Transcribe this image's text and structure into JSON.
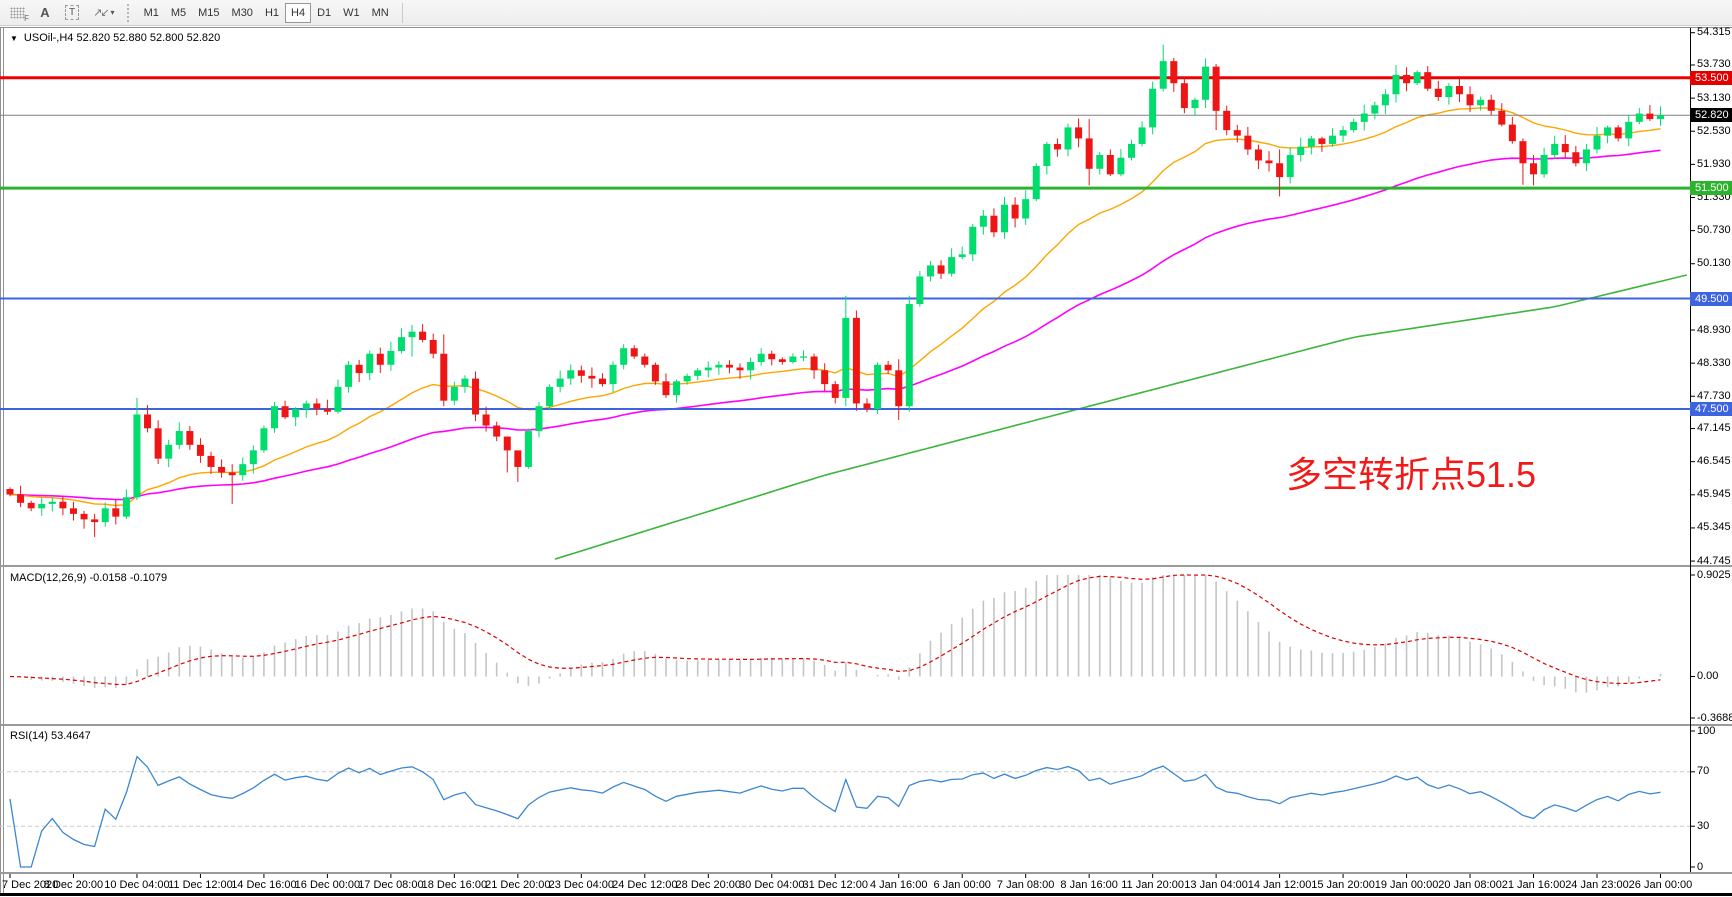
{
  "toolbar": {
    "icons": [
      {
        "name": "chart-grid-icon",
        "glyph": "F"
      },
      {
        "name": "insert-text-icon",
        "glyph": "A"
      },
      {
        "name": "text-label-icon",
        "glyph": "T"
      },
      {
        "name": "cursor-arrows-icon",
        "glyph": "↗↙"
      },
      {
        "name": "dropdown-caret-icon",
        "glyph": "▾"
      }
    ],
    "timeframes": [
      "M1",
      "M5",
      "M15",
      "M30",
      "H1",
      "H4",
      "D1",
      "W1",
      "MN"
    ],
    "active_timeframe": "H4"
  },
  "symbol_info": {
    "dropdown_icon": "▼",
    "text": "USOil-,H4  52.820 52.880 52.800 52.820"
  },
  "annotation": {
    "text": "多空转折点51.5",
    "color": "#f21919"
  },
  "price_scale": {
    "ticks": [
      "54.315",
      "53.730",
      "53.130",
      "52.530",
      "51.930",
      "51.330",
      "50.730",
      "50.130",
      "48.930",
      "48.330",
      "47.730",
      "47.145",
      "46.545",
      "45.945",
      "45.345",
      "44.745"
    ],
    "badges": [
      {
        "label": "53.500",
        "price": 53.5,
        "bg": "#e00000",
        "fg": "#ffffff"
      },
      {
        "label": "52.820",
        "price": 52.82,
        "bg": "#000000",
        "fg": "#ffffff"
      },
      {
        "label": "51.500",
        "price": 51.5,
        "bg": "#2db22d",
        "fg": "#ffffff"
      },
      {
        "label": "49.500",
        "price": 49.5,
        "bg": "#3e63de",
        "fg": "#ffffff"
      },
      {
        "label": "47.500",
        "price": 47.5,
        "bg": "#3e63de",
        "fg": "#ffffff"
      }
    ]
  },
  "macd_panel": {
    "label": "MACD(12,26,9) -0.0158 -0.1079",
    "scale": {
      "max": "0.9025",
      "zero": "0.00",
      "min": "-0.3688"
    },
    "scale_values": {
      "max": 0.9025,
      "zero": 0.0,
      "min": -0.3688
    }
  },
  "rsi_panel": {
    "label": "RSI(14) 53.4647",
    "levels": [
      {
        "text": "100",
        "value": 100,
        "dashed": false
      },
      {
        "text": "70",
        "value": 70,
        "dashed": true
      },
      {
        "text": "30",
        "value": 30,
        "dashed": true
      },
      {
        "text": "0",
        "value": 0,
        "dashed": false
      }
    ]
  },
  "time_axis": {
    "labels": [
      "7 Dec 2020",
      "8 Dec 20:00",
      "10 Dec 04:00",
      "11 Dec 12:00",
      "14 Dec 16:00",
      "16 Dec 00:00",
      "17 Dec 08:00",
      "18 Dec 16:00",
      "21 Dec 20:00",
      "23 Dec 04:00",
      "24 Dec 12:00",
      "28 Dec 20:00",
      "30 Dec 04:00",
      "31 Dec 12:00",
      "4 Jan 16:00",
      "6 Jan 00:00",
      "7 Jan 08:00",
      "8 Jan 16:00",
      "11 Jan 20:00",
      "13 Jan 04:00",
      "14 Jan 12:00",
      "15 Jan 20:00",
      "19 Jan 00:00",
      "20 Jan 08:00",
      "21 Jan 16:00",
      "24 Jan 23:00",
      "26 Jan 00:00"
    ],
    "candles_per_label": 6
  },
  "chart_data": {
    "type": "candlestick",
    "symbol": "USOil-",
    "timeframe": "H4",
    "title": "USOil-,H4",
    "current_ohlc": {
      "open": 52.82,
      "high": 52.88,
      "low": 52.8,
      "close": 52.82
    },
    "ylim": [
      44.71,
      54.4
    ],
    "first_open": 46.05,
    "closes": [
      45.95,
      45.8,
      45.7,
      45.78,
      45.82,
      45.7,
      45.6,
      45.5,
      45.45,
      45.7,
      45.55,
      45.9,
      47.4,
      47.15,
      46.6,
      46.85,
      47.1,
      46.85,
      46.65,
      46.45,
      46.35,
      46.3,
      46.5,
      46.75,
      47.15,
      47.55,
      47.35,
      47.5,
      47.6,
      47.5,
      47.45,
      47.9,
      48.3,
      48.15,
      48.5,
      48.3,
      48.55,
      48.8,
      48.9,
      48.75,
      48.5,
      47.65,
      47.9,
      48.05,
      47.4,
      47.2,
      47.0,
      46.75,
      46.45,
      47.1,
      47.55,
      47.9,
      48.05,
      48.2,
      48.1,
      48.05,
      47.95,
      48.3,
      48.6,
      48.45,
      48.3,
      48.0,
      47.75,
      48.0,
      48.1,
      48.2,
      48.25,
      48.3,
      48.25,
      48.2,
      48.35,
      48.5,
      48.4,
      48.35,
      48.45,
      48.45,
      48.2,
      47.95,
      47.7,
      49.15,
      47.6,
      47.5,
      48.3,
      48.2,
      47.55,
      49.4,
      49.9,
      50.1,
      49.95,
      50.25,
      50.3,
      50.8,
      51.0,
      50.7,
      51.2,
      50.95,
      51.3,
      51.9,
      52.3,
      52.2,
      52.6,
      52.4,
      51.85,
      52.1,
      51.75,
      52.05,
      52.3,
      52.6,
      53.3,
      53.8,
      53.4,
      52.95,
      53.1,
      53.7,
      52.9,
      52.55,
      52.45,
      52.2,
      52.0,
      51.95,
      51.7,
      52.1,
      52.25,
      52.4,
      52.3,
      52.45,
      52.55,
      52.7,
      52.85,
      53.0,
      53.2,
      53.55,
      53.4,
      53.6,
      53.3,
      53.15,
      53.35,
      53.2,
      53.0,
      53.1,
      52.9,
      52.65,
      52.35,
      51.95,
      51.75,
      52.1,
      52.3,
      52.15,
      51.95,
      52.2,
      52.45,
      52.6,
      52.4,
      52.7,
      52.85,
      52.75,
      52.82
    ],
    "wick_overrides": {
      "8": [
        45.6,
        45.18
      ],
      "12": [
        47.7,
        45.85
      ],
      "21": [
        46.5,
        45.78
      ],
      "38": [
        49.02,
        48.45
      ],
      "41": [
        48.85,
        47.55
      ],
      "47": [
        46.85,
        46.35
      ],
      "48": [
        46.55,
        46.18
      ],
      "79": [
        49.55,
        47.55
      ],
      "84": [
        48.4,
        47.3
      ],
      "85": [
        49.55,
        47.45
      ],
      "102": [
        52.75,
        51.55
      ],
      "109": [
        54.1,
        53.25
      ],
      "113": [
        53.85,
        52.95
      ],
      "114": [
        53.75,
        52.55
      ],
      "120": [
        52.2,
        51.35
      ],
      "131": [
        53.73,
        53.05
      ],
      "143": [
        52.4,
        51.56
      ],
      "144": [
        52.1,
        51.55
      ]
    },
    "hlines": [
      {
        "price": 53.5,
        "color": "#f00000",
        "width": 3
      },
      {
        "price": 51.5,
        "color": "#2db22d",
        "width": 3
      },
      {
        "price": 49.5,
        "color": "#3e63de",
        "width": 2
      },
      {
        "price": 47.5,
        "color": "#3e63de",
        "width": 2
      },
      {
        "price": 52.82,
        "color": "#808080",
        "width": 1
      }
    ],
    "moving_averages": [
      {
        "name": "fast-ma",
        "type": "ema",
        "period": 20,
        "color": "#ffa500"
      },
      {
        "name": "medium-ma",
        "type": "ema",
        "period": 55,
        "color": "#ff00ff"
      },
      {
        "name": "slow-ma",
        "type": "waypoints",
        "color": "#3db53d",
        "waypoints": [
          [
            51.5,
            44.78
          ],
          [
            77,
            46.3
          ],
          [
            101,
            47.5
          ],
          [
            127,
            48.8
          ],
          [
            146,
            49.35
          ],
          [
            159,
            49.95
          ]
        ]
      }
    ],
    "indicators": {
      "macd": {
        "fast": 12,
        "slow": 26,
        "signal": 9,
        "current_main": -0.0158,
        "current_signal": -0.1079,
        "histogram_color": "#c4c4c4",
        "signal_color": "#dd0000"
      },
      "rsi": {
        "period": 14,
        "current": 53.4647,
        "line_color": "#3d87d0"
      }
    },
    "colors": {
      "up": "#00dc6e",
      "down": "#ee1515",
      "background": "#ffffff",
      "axis_text": "#000000"
    }
  }
}
